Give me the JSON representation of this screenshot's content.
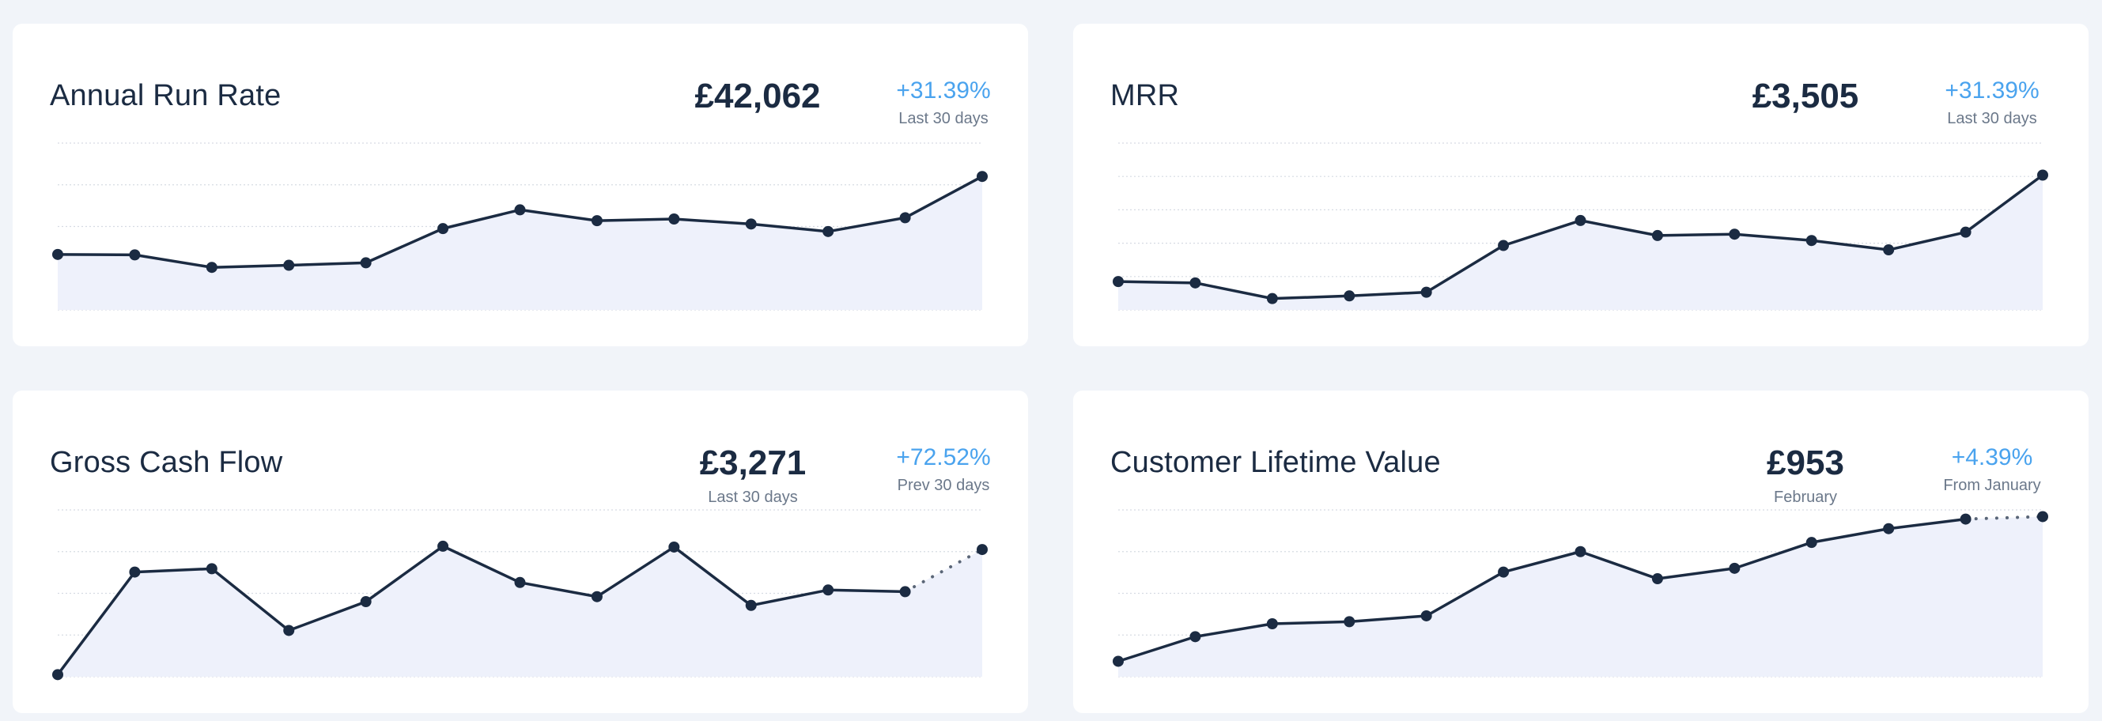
{
  "colors": {
    "line": "#1b2b42",
    "area": "#eef1fb",
    "accent": "#4aa3ee",
    "grid": "#d6dbe3"
  },
  "cards": [
    {
      "title": "Annual Run Rate",
      "value": "£42,062",
      "value_sub": "",
      "change": "+31.39%",
      "change_sub": "Last 30 days"
    },
    {
      "title": "MRR",
      "value": "£3,505",
      "value_sub": "",
      "change": "+31.39%",
      "change_sub": "Last 30 days"
    },
    {
      "title": "Gross Cash Flow",
      "value": "£3,271",
      "value_sub": "Last 30 days",
      "change": "+72.52%",
      "change_sub": "Prev 30 days"
    },
    {
      "title": "Customer Lifetime Value",
      "value": "£953",
      "value_sub": "February",
      "change": "+4.39%",
      "change_sub": "From January"
    }
  ],
  "chart_data": [
    {
      "type": "line",
      "title": "Annual Run Rate",
      "ylim": [
        0,
        4
      ],
      "grid": true,
      "values": [
        1.33,
        1.32,
        1.02,
        1.07,
        1.13,
        1.95,
        2.4,
        2.14,
        2.18,
        2.06,
        1.88,
        2.21,
        3.2
      ],
      "dashed_last_segment": false
    },
    {
      "type": "line",
      "title": "MRR",
      "ylim": [
        0,
        5
      ],
      "grid": true,
      "values": [
        0.85,
        0.81,
        0.34,
        0.42,
        0.53,
        1.93,
        2.68,
        2.23,
        2.27,
        2.08,
        1.8,
        2.33,
        4.04
      ],
      "dashed_last_segment": false
    },
    {
      "type": "line",
      "title": "Gross Cash Flow",
      "ylim": [
        0,
        4
      ],
      "grid": true,
      "values": [
        0.05,
        2.51,
        2.59,
        1.11,
        1.8,
        3.13,
        2.26,
        1.92,
        3.11,
        1.71,
        2.08,
        2.04,
        3.05
      ],
      "dashed_last_segment": true
    },
    {
      "type": "line",
      "title": "Customer Lifetime Value",
      "ylim": [
        0,
        4
      ],
      "grid": true,
      "values": [
        0.37,
        0.96,
        1.27,
        1.32,
        1.46,
        2.51,
        3.0,
        2.35,
        2.6,
        3.22,
        3.55,
        3.78,
        3.84
      ],
      "dashed_last_segment": true
    }
  ]
}
